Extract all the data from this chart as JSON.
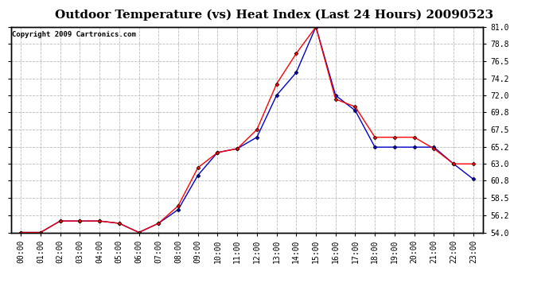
{
  "title": "Outdoor Temperature (vs) Heat Index (Last 24 Hours) 20090523",
  "copyright_text": "Copyright 2009 Cartronics.com",
  "x_labels": [
    "00:00",
    "01:00",
    "02:00",
    "03:00",
    "04:00",
    "05:00",
    "06:00",
    "07:00",
    "08:00",
    "09:00",
    "10:00",
    "11:00",
    "12:00",
    "13:00",
    "14:00",
    "15:00",
    "16:00",
    "17:00",
    "18:00",
    "19:00",
    "20:00",
    "21:00",
    "22:00",
    "23:00"
  ],
  "temp_data": [
    54.0,
    54.0,
    55.5,
    55.5,
    55.5,
    55.2,
    54.0,
    55.2,
    57.5,
    62.5,
    64.5,
    65.0,
    67.5,
    73.5,
    77.5,
    81.0,
    71.5,
    70.5,
    66.5,
    66.5,
    66.5,
    65.0,
    63.0,
    63.0
  ],
  "heat_index_data": [
    54.0,
    54.0,
    55.5,
    55.5,
    55.5,
    55.2,
    54.0,
    55.2,
    57.0,
    61.5,
    64.5,
    65.0,
    66.5,
    72.0,
    75.0,
    81.0,
    72.0,
    70.0,
    65.2,
    65.2,
    65.2,
    65.2,
    63.0,
    61.0
  ],
  "temp_color": "#ff0000",
  "heat_index_color": "#0000cc",
  "marker": "D",
  "marker_size": 2.5,
  "ylim": [
    54.0,
    81.0
  ],
  "yticks": [
    54.0,
    56.2,
    58.5,
    60.8,
    63.0,
    65.2,
    67.5,
    69.8,
    72.0,
    74.2,
    76.5,
    78.8,
    81.0
  ],
  "grid_color": "#bbbbbb",
  "grid_style": "--",
  "bg_color": "#ffffff",
  "plot_bg_color": "#ffffff",
  "title_fontsize": 11,
  "copyright_fontsize": 6.5,
  "tick_fontsize": 7
}
